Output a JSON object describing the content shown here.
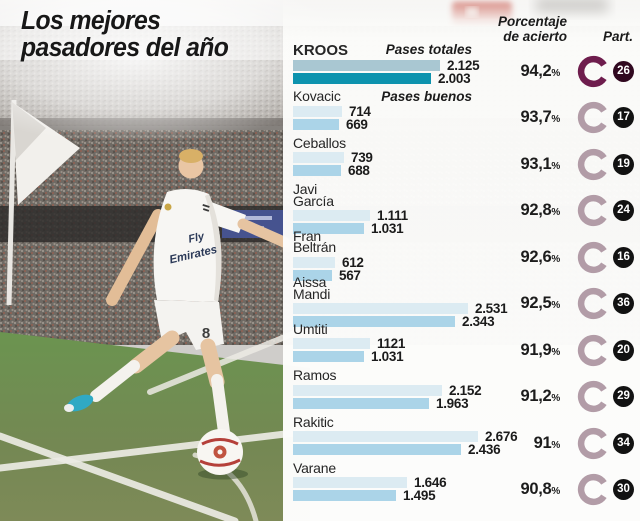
{
  "infographic": {
    "title_line1": "Los mejores",
    "title_line2": "pasadores del año",
    "legend": {
      "total": "Pases totales",
      "good": "Pases buenos"
    },
    "columns": {
      "accuracy_l1": "Porcentaje",
      "accuracy_l2": "de acierto",
      "part": "Part."
    },
    "pct_symbol": "%"
  },
  "colors": {
    "bar_total": "#dcebf2",
    "bar_good": "#abd4e8",
    "bar_total_hl": "#a9c7d2",
    "bar_good_hl": "#0d93ae",
    "ring": "#b29ca7",
    "ring_hl": "#6e1d4d",
    "badge": "#121212",
    "badge_hl": "#30081f"
  },
  "chart_data": {
    "type": "bar",
    "orientation": "horizontal",
    "title": "Los mejores pasadores del año",
    "series": [
      "Pases totales",
      "Pases buenos"
    ],
    "value_axis_max": 2676,
    "players": [
      {
        "name": "KROOS",
        "name_lines": [
          "KROOS"
        ],
        "total": 2125,
        "total_display": "2.125",
        "good": 2003,
        "good_display": "2.003",
        "accuracy_display": "94,2",
        "accuracy_pct": 94.2,
        "part": "26",
        "highlight": true
      },
      {
        "name": "Kovacic",
        "name_lines": [
          "Kovacic"
        ],
        "total": 714,
        "total_display": "714",
        "good": 669,
        "good_display": "669",
        "accuracy_display": "93,7",
        "accuracy_pct": 93.7,
        "part": "17",
        "highlight": false
      },
      {
        "name": "Ceballos",
        "name_lines": [
          "Ceballos"
        ],
        "total": 739,
        "total_display": "739",
        "good": 688,
        "good_display": "688",
        "accuracy_display": "93,1",
        "accuracy_pct": 93.1,
        "part": "19",
        "highlight": false
      },
      {
        "name": "Javi García",
        "name_lines": [
          "Javi",
          "García"
        ],
        "total": 1111,
        "total_display": "1.111",
        "good": 1031,
        "good_display": "1.031",
        "accuracy_display": "92,8",
        "accuracy_pct": 92.8,
        "part": "24",
        "highlight": false
      },
      {
        "name": "Fran Beltrán",
        "name_lines": [
          "Fran",
          "Beltrán"
        ],
        "total": 612,
        "total_display": "612",
        "good": 567,
        "good_display": "567",
        "accuracy_display": "92,6",
        "accuracy_pct": 92.6,
        "part": "16",
        "highlight": false
      },
      {
        "name": "Aissa Mandi",
        "name_lines": [
          "Aissa",
          "Mandi"
        ],
        "total": 2531,
        "total_display": "2.531",
        "good": 2343,
        "good_display": "2.343",
        "accuracy_display": "92,5",
        "accuracy_pct": 92.5,
        "part": "36",
        "highlight": false
      },
      {
        "name": "Umtiti",
        "name_lines": [
          "Umtiti"
        ],
        "total": 1121,
        "total_display": "1121",
        "good": 1031,
        "good_display": "1.031",
        "accuracy_display": "91,9",
        "accuracy_pct": 91.9,
        "part": "20",
        "highlight": false
      },
      {
        "name": "Ramos",
        "name_lines": [
          "Ramos"
        ],
        "total": 2152,
        "total_display": "2.152",
        "good": 1963,
        "good_display": "1.963",
        "accuracy_display": "91,2",
        "accuracy_pct": 91.2,
        "part": "29",
        "highlight": false
      },
      {
        "name": "Rakitic",
        "name_lines": [
          "Rakitic"
        ],
        "total": 2676,
        "total_display": "2.676",
        "good": 2436,
        "good_display": "2.436",
        "accuracy_display": "91",
        "accuracy_pct": 91.0,
        "part": "34",
        "highlight": false
      },
      {
        "name": "Varane",
        "name_lines": [
          "Varane"
        ],
        "total": 1646,
        "total_display": "1.646",
        "good": 1495,
        "good_display": "1.495",
        "accuracy_display": "90,8",
        "accuracy_pct": 90.8,
        "part": "30",
        "highlight": false
      }
    ]
  }
}
